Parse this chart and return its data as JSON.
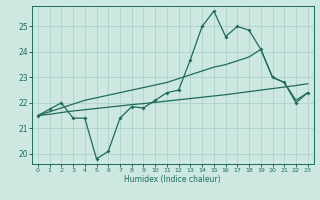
{
  "xlabel": "Humidex (Indice chaleur)",
  "background_color": "#cde8e0",
  "grid_color": "#aacec6",
  "line_color": "#1e6b5e",
  "x_values": [
    0,
    1,
    2,
    3,
    4,
    5,
    6,
    7,
    8,
    9,
    10,
    11,
    12,
    13,
    14,
    15,
    16,
    17,
    18,
    19,
    20,
    21,
    22,
    23
  ],
  "jagged_y": [
    21.5,
    21.75,
    22.0,
    21.4,
    21.4,
    19.8,
    20.1,
    21.4,
    21.85,
    21.8,
    22.1,
    22.4,
    22.5,
    23.7,
    25.0,
    25.6,
    24.6,
    25.0,
    24.85,
    24.1,
    23.0,
    22.8,
    22.0,
    22.4
  ],
  "upper_y": [
    21.5,
    21.65,
    21.8,
    21.95,
    22.1,
    22.2,
    22.3,
    22.4,
    22.5,
    22.6,
    22.7,
    22.8,
    22.95,
    23.1,
    23.25,
    23.4,
    23.5,
    23.65,
    23.8,
    24.1,
    23.0,
    22.8,
    22.1,
    22.4
  ],
  "lower_y": [
    21.5,
    21.55,
    21.62,
    21.68,
    21.73,
    21.78,
    21.83,
    21.88,
    21.93,
    21.97,
    22.02,
    22.07,
    22.12,
    22.17,
    22.22,
    22.27,
    22.32,
    22.38,
    22.44,
    22.5,
    22.56,
    22.62,
    22.68,
    22.75
  ],
  "ylim": [
    19.6,
    25.8
  ],
  "xlim": [
    -0.5,
    23.5
  ],
  "yticks": [
    20,
    21,
    22,
    23,
    24,
    25
  ],
  "xticks": [
    0,
    1,
    2,
    3,
    4,
    5,
    6,
    7,
    8,
    9,
    10,
    11,
    12,
    13,
    14,
    15,
    16,
    17,
    18,
    19,
    20,
    21,
    22,
    23
  ],
  "xtick_labels": [
    "0",
    "1",
    "2",
    "3",
    "4",
    "5",
    "6",
    "7",
    "8",
    "9",
    "10",
    "11",
    "12",
    "13",
    "14",
    "15",
    "16",
    "17",
    "18",
    "19",
    "20",
    "21",
    "22",
    "23"
  ]
}
